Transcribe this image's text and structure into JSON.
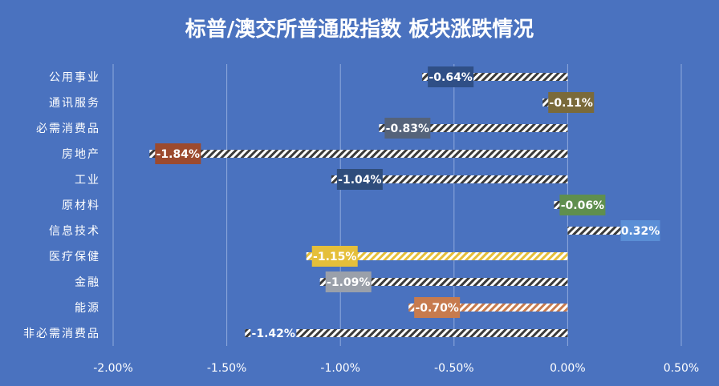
{
  "chart_data": {
    "type": "bar",
    "orientation": "horizontal",
    "title": "标普/澳交所普通股指数 板块涨跌情况",
    "categories": [
      "公用事业",
      "通讯服务",
      "必需消费品",
      "房地产",
      "工业",
      "原材料",
      "信息技术",
      "医疗保健",
      "金融",
      "能源",
      "非必需消费品"
    ],
    "values": [
      -0.64,
      -0.11,
      -0.83,
      -1.84,
      -1.04,
      -0.06,
      0.32,
      -1.15,
      -1.09,
      -0.7,
      -1.42
    ],
    "data_labels": [
      "-0.64%",
      "-0.11%",
      "-0.83%",
      "-1.84%",
      "-1.04%",
      "-0.06%",
      "0.32%",
      "-1.15%",
      "-1.09%",
      "-0.70%",
      "-1.42%"
    ],
    "xlim": [
      -2.0,
      0.5
    ],
    "x_ticks": [
      -2.0,
      -1.5,
      -1.0,
      -0.5,
      0.0,
      0.5
    ],
    "x_tick_labels": [
      "-2.00%",
      "-1.50%",
      "-1.00%",
      "-0.50%",
      "0.00%",
      "0.50%"
    ],
    "grid": true,
    "bar_pattern": "diagonal-hatch",
    "colors": {
      "background": "#4a72bf",
      "text": "#ffffff",
      "grid": "#8fa9dc",
      "bar_hatch": "#ffffff",
      "bar_fill": "#3a3a3a",
      "label_boxes": [
        "#2f4f86",
        "#7a6a3a",
        "#55637a",
        "#9c4a2e",
        "#2f4d7c",
        "#5f8f4e",
        "#5a8ed6",
        "#e5bf3a",
        "#9aa0aa",
        "#c77b4e",
        "#4a72bf"
      ]
    }
  }
}
